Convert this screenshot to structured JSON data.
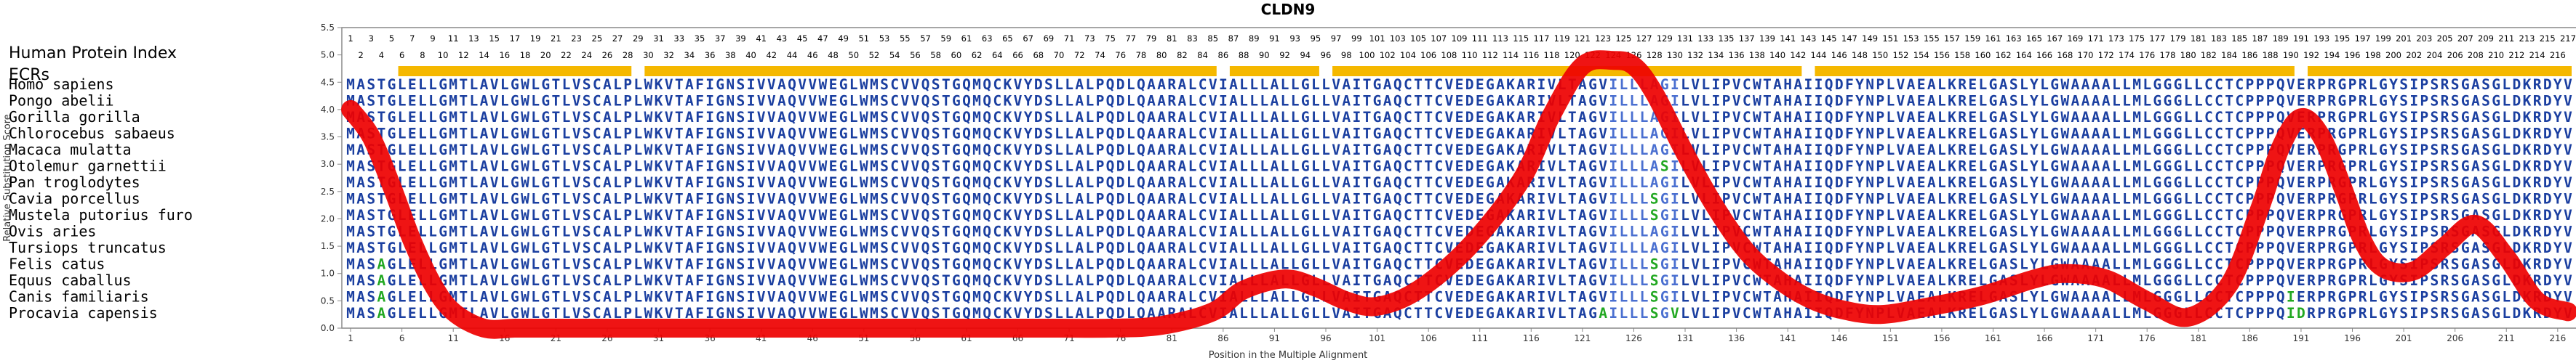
{
  "chart_data": {
    "type": "line",
    "title": "CLDN9",
    "xlabel": "Position in the Multiple Alignment",
    "ylabel": "Relative Substitution Score",
    "ylim": [
      0,
      5.5
    ],
    "xlim": [
      1,
      217
    ],
    "yticks": [
      "0.0",
      "0.5",
      "1.0",
      "1.5",
      "2.0",
      "2.5",
      "3.0",
      "3.5",
      "4.0",
      "4.5",
      "5.0",
      "5.5"
    ],
    "xticks": [
      "1",
      "6",
      "11",
      "16",
      "21",
      "26",
      "31",
      "36",
      "41",
      "46",
      "51",
      "56",
      "61",
      "66",
      "71",
      "76",
      "81",
      "86",
      "91",
      "96",
      "101",
      "106",
      "111",
      "116",
      "121",
      "126",
      "131",
      "136",
      "141",
      "146",
      "151",
      "156",
      "161",
      "166",
      "171",
      "176",
      "181",
      "186",
      "191",
      "196",
      "201",
      "206",
      "211",
      "216"
    ],
    "protein_index_label": "Human Protein Index",
    "ecrs_label": "ECRs",
    "ecrs": [
      [
        6,
        28
      ],
      [
        30,
        85
      ],
      [
        87,
        95
      ],
      [
        97,
        142
      ],
      [
        144,
        190
      ],
      [
        192,
        217
      ]
    ],
    "ecr_color": "#f5b800",
    "line_color": "#ee0000",
    "index_top_odd": [
      "1",
      "3",
      "5",
      "7",
      "9",
      "11",
      "13",
      "15",
      "17",
      "19",
      "21",
      "23",
      "25",
      "27",
      "29",
      "31",
      "33",
      "35",
      "37",
      "39",
      "41",
      "43",
      "45",
      "47",
      "49",
      "51",
      "53",
      "55",
      "57",
      "59",
      "61",
      "63",
      "65",
      "67",
      "69",
      "71",
      "73",
      "75",
      "77",
      "79",
      "81",
      "83",
      "85",
      "87",
      "89",
      "91",
      "93",
      "95",
      "97",
      "99",
      "101",
      "103",
      "105",
      "107",
      "109",
      "111",
      "113",
      "115",
      "117",
      "119",
      "121",
      "123",
      "125",
      "127",
      "129",
      "131",
      "133",
      "135",
      "137",
      "139",
      "141",
      "143",
      "145",
      "147",
      "149",
      "151",
      "153",
      "155",
      "157",
      "159",
      "161",
      "163",
      "165",
      "167",
      "169",
      "171",
      "173",
      "175",
      "177",
      "179",
      "181",
      "183",
      "185",
      "187",
      "189",
      "191",
      "193",
      "195",
      "197",
      "199",
      "201",
      "203",
      "205",
      "207",
      "209",
      "211",
      "213",
      "215",
      "217"
    ],
    "index_bottom_even": [
      "2",
      "4",
      "6",
      "8",
      "10",
      "12",
      "14",
      "16",
      "18",
      "20",
      "22",
      "24",
      "26",
      "28",
      "30",
      "32",
      "34",
      "36",
      "38",
      "40",
      "42",
      "44",
      "46",
      "48",
      "50",
      "52",
      "54",
      "56",
      "58",
      "60",
      "62",
      "64",
      "66",
      "68",
      "70",
      "72",
      "74",
      "76",
      "78",
      "80",
      "82",
      "84",
      "86",
      "88",
      "90",
      "92",
      "94",
      "96",
      "98",
      "100",
      "102",
      "104",
      "106",
      "108",
      "110",
      "112",
      "114",
      "116",
      "118",
      "120",
      "122",
      "124",
      "126",
      "128",
      "130",
      "132",
      "134",
      "136",
      "138",
      "140",
      "142",
      "144",
      "146",
      "148",
      "150",
      "152",
      "154",
      "156",
      "158",
      "160",
      "162",
      "164",
      "166",
      "168",
      "170",
      "172",
      "174",
      "176",
      "178",
      "180",
      "182",
      "184",
      "186",
      "188",
      "190",
      "192",
      "194",
      "196",
      "198",
      "200",
      "202",
      "204",
      "206",
      "208",
      "210",
      "212",
      "214",
      "216"
    ],
    "species": [
      {
        "name": "Homo sapiens",
        "sequence": "MASTGLELLGMTLAVLGWLGTLVSCALPLWKVTAFIGNSIVVAQVVWEGLWMSCVVQSTGQMQCKVYDSLLALPQDLQAARALCVIALLLALLGLLVAITGAQCTTCVEDEGAKARIVLTAGVILLLAGILVLIPVCWTAHAIIQDFYNPLVAEALKRELGASLYLGWAAAALLMLGGGLLCCTCPPPQVERPRGPRLGYSIPSRSGASGLDKRDYV"
      },
      {
        "name": "Pongo abelii",
        "sequence": "MASTGLELLGMTLAVLGWLGTLVSCALPLWKVTAFIGNSIVVAQVVWEGLWMSCVVQSTGQMQCKVYDSLLALPQDLQAARALCVIALLLALLGLLVAITGAQCTTCVEDEGAKARIVLTAGVILLLAGILVLIPVCWTAHAIIQDFYNPLVAEALKRELGASLYLGWAAAALLMLGGGLLCCTCPPPQVERPRGPRLGYSIPSRSGASGLDKRDYV"
      },
      {
        "name": "Gorilla gorilla",
        "sequence": "MASTGLELLGMTLAVLGWLGTLVSCALPLWKVTAFIGNSIVVAQVVWEGLWMSCVVQSTGQMQCKVYDSLLALPQDLQAARALCVIALLLALLGLLVAITGAQCTTCVEDEGAKARIVLTAGVILLLAGILVLIPVCWTAHAIIQDFYNPLVAEALKRELGASLYLGWAAAALLMLGGGLLCCTCPPPQVERPRGPRLGYSIPSRSGASGLDKRDYV"
      },
      {
        "name": "Chlorocebus sabaeus",
        "sequence": "MASTGLELLGMTLAVLGWLGTLVSCALPLWKVTAFIGNSIVVAQVVWEGLWMSCVVQSTGQMQCKVYDSLLALPQDLQAARALCVIALLLALLGLLVAITGAQCTTCVEDEGAKARIVLTAGVILLLAGILVLIPVCWTAHAIIQDFYNPLVAEALKRELGASLYLGWAAAALLMLGGGLLCCTCPPPQVERPRGPRLGYSIPSRSGASGLDKRDYV"
      },
      {
        "name": "Macaca mulatta",
        "sequence": "MASTGLELLGMTLAVLGWLGTLVSCALPLWKVTAFIGNSIVVAQVVWEGLWMSCVVQSTGQMQCKVYDSLLALPQDLQAARALCVIALLLALLGLLVAITGAQCTTCVEDEGAKARIVLTAGVILLLAGILVLIPVCWTAHAIIQDFYNPLVAEALKRELGASLYLGWAAAALLMLGGGLLCCTCPPPQVERPRGPRLGYSIPSRSGASGLDKRDYV"
      },
      {
        "name": "Otolemur garnettii",
        "sequence": "MASTGLELLGMTLAVLGWLGTLVSCALPLWKVTAFIGNSIVVAQVVWEGLWMSCVVQSTGQMQCKVYDSLLALPQDLQAARALCVIALLLALLGLLVAITGAQCTTCVEDEGAKARIVLTAGVILLLASILVLIPVCWTAHAIIQDFYNPLVAEALKRELGASLYLGWAAAALLMLGGGLLCCTCPPPQVERPRGPRLGYSIPSRSGASGLDKRDYV"
      },
      {
        "name": "Pan troglodytes",
        "sequence": "MASTGLELLGMTLAVLGWLGTLVSCALPLWKVTAFIGNSIVVAQVVWEGLWMSCVVQSTGQMQCKVYDSLLALPQDLQAARALCVIALLLALLGLLVAITGAQCTTCVEDEGAKARIVLTAGVILLLAGILVLIPVCWTAHAIIQDFYNPLVAEALKRELGASLYLGWAAAALLMLGGGLLCCTCPPPQVERPRGPRLGYSIPSRSGASGLDKRDYV"
      },
      {
        "name": "Cavia porcellus",
        "sequence": "MASTGLELLGMTLAVLGWLGTLVSCALPLWKVTAFIGNSIVVAQVVWEGLWMSCVVQSTGQMQCKVYDSLLALPQDLQAARALCVIALLLALLGLLVAITGAQCTTCVEDEGAKARIVLTAGVILLLSGILVLIPVCWTAHAIIQDFYNPLVAEALKRELGASLYLGWAAAALLMLGGGLLCCTCPPPQVERPRGPRLGYSIPSRSGASGLDKRDYV"
      },
      {
        "name": "Mustela putorius furo",
        "sequence": "MASTGLELLGMTLAVLGWLGTLVSCALPLWKVTAFIGNSIVVAQVVWEGLWMSCVVQSTGQMQCKVYDSLLALPQDLQAARALCVIALLLALLGLLVAITGAQCTTCVEDEGAKARIVLTAGVILLLSGILVLIPVCWTAHAIIQDFYNPLVAEALKRELGASLYLGWAAAALLMLGGGLLCCTCPPPQVERPRGPRLGYSIPSRSGASGLDKRDYV"
      },
      {
        "name": "Ovis aries",
        "sequence": "MASTGLELLGMTLAVLGWLGTLVSCALPLWKVTAFIGNSIVVAQVVWEGLWMSCVVQSTGQMQCKVYDSLLALPQDLQAARALCVIALLLALLGLLVAITGAQCTTCVEDEGAKARIVLTAGVILLLAGILVLIPVCWTAHAIIQDFYNPLVAEALKRELGASLYLGWAAAALLMLGGGLLCCTCPPPQVERPRGPRLGYSIPSRSGASGLDKRDYV"
      },
      {
        "name": "Tursiops truncatus",
        "sequence": "MASTGLELLGMTLAVLGWLGTLVSCALPLWKVTAFIGNSIVVAQVVWEGLWMSCVVQSTGQMQCKVYDSLLALPQDLQAARALCVIALLLALLGLLVAITGAQCTTCVEDEGAKARIVLTAGVILLLAGILVLIPVCWTAHAIIQDFYNPLVAEALKRELGASLYLGWAAAALLMLGGGLLCCTCPPPQVERPRGPRLGYSIPSRSGASGLDKRDYV"
      },
      {
        "name": "Felis catus",
        "sequence": "MASAGLELLGMTLAVLGWLGTLVSCALPLWKVTAFIGNSIVVAQVVWEGLWMSCVVQSTGQMQCKVYDSLLALPQDLQAARALCVIALLLALLGLLVAITGAQCTTCVEDEGAKARIVLTAGVILLLSGILVLIPVCWTAHAIIQDFYNPLVAEALKRELGASLYLGWAAAALLMLGGGLLCCTCPPPQVERPRGPRLGYSIPSRSGASGLDKRDYV"
      },
      {
        "name": "Equus caballus",
        "sequence": "MASAGLELLGMTLAVLGWLGTLVSCALPLWKVTAFIGNSIVVAQVVWEGLWMSCVVQSTGQMQCKVYDSLLALPQDLQAARALCVIALLLALLGLLVAITGAQCTTCVEDEGAKARIVLTAGVILLLSGILVLIPVCWTAHAIIQDFYNPLVAEALKRELGASLYLGWAAAALLMLGGGLLCCTCPPPQVERPRGPRLGYSIPSRSGASGLDKRDYV"
      },
      {
        "name": "Canis familiaris",
        "sequence": "MASAGLELLGMTLAVLGWLGTLVSCALPLWKVTAFIGNSIVVAQVVWEGLWMSCVVQSTGQMQCKVYDSLLALPQDLQAARALCVIALLLALLGLLVAITGAQCTTCVEDEGAKARIVLTAGVILLLSGILVLIPVCWTAHAIIQDFYNPLVAEALKRELGASLYLGWAAAALLMLGGGLLCCTCPPPQIERPRGPRLGYSIPSRSGASGLDKRDYV"
      },
      {
        "name": "Procavia capensis",
        "sequence": "MASAGLELLGMTLAVLGWLGTLVSCALPLWKVTAFIGNSIVVAQVVWEGLWMSCVVQSTGQMQCKVYDSLLALPQDLQAARALCVIALLLALLGLLVAITGAQCTTCVEDEGAKARIVLTAGAILLLSGVLVLIPVCWTAHAIIQDFYNPLVAEALKRELGASLYLGWAAAALLMLGGGLLCCTCPPPQIDRPRGPRLGYSIPSRSGASGLDKRDYV"
      }
    ],
    "series": [
      {
        "x": [
          1,
          3,
          5,
          7,
          9,
          11,
          14,
          17,
          20,
          25,
          30,
          35,
          40,
          45,
          50,
          55,
          60,
          65,
          70,
          75,
          80,
          85,
          88,
          92,
          95,
          98,
          101,
          105,
          110,
          115,
          118,
          121,
          124,
          126,
          128,
          131,
          134,
          137,
          140,
          143,
          146,
          150,
          155,
          160,
          165,
          168,
          172,
          176,
          180,
          184,
          187,
          189,
          191,
          193,
          195,
          197,
          199,
          202,
          205,
          208,
          211,
          214,
          217
        ],
        "y": [
          4.0,
          3.5,
          2.6,
          1.6,
          0.8,
          0.3,
          0.0,
          0.0,
          0.0,
          0.0,
          0.0,
          0.0,
          0.0,
          0.0,
          0.0,
          0.0,
          0.0,
          0.0,
          0.0,
          0.0,
          0.05,
          0.3,
          0.7,
          0.9,
          0.75,
          0.5,
          0.4,
          0.7,
          1.5,
          2.7,
          3.9,
          4.8,
          4.9,
          4.8,
          4.3,
          3.2,
          2.2,
          1.4,
          0.9,
          0.55,
          0.35,
          0.25,
          0.4,
          0.6,
          0.9,
          1.0,
          0.9,
          0.5,
          0.2,
          0.8,
          2.2,
          3.3,
          3.85,
          3.5,
          2.6,
          1.6,
          1.1,
          1.05,
          1.5,
          1.9,
          1.3,
          0.5,
          0.3
        ]
      }
    ]
  }
}
